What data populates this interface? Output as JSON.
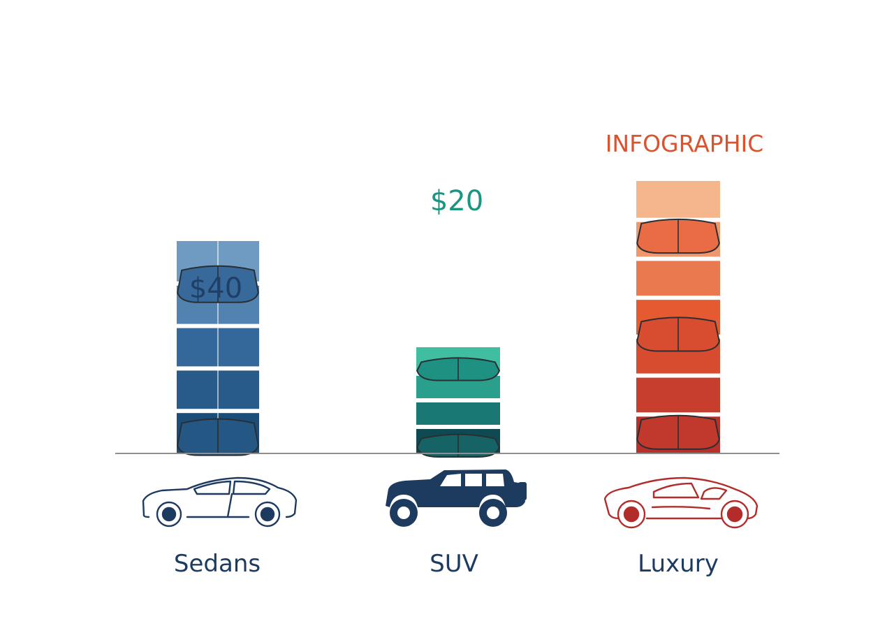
{
  "chart_data": {
    "type": "bar",
    "title": "",
    "xlabel": "",
    "ylabel": "",
    "categories": [
      "Sedans",
      "SUV",
      "Luxury"
    ],
    "series": [
      {
        "values": [
          40,
          20,
          null
        ],
        "value_labels": [
          "$40",
          "$20",
          ""
        ]
      }
    ],
    "annotations": [
      {
        "category": "Luxury",
        "text": "INFOGRAPHIC"
      }
    ],
    "grid": false,
    "legend": "none",
    "icons": [
      "sedan-car-icon",
      "suv-car-icon",
      "luxury-car-icon"
    ],
    "colors": {
      "Sedans": {
        "top": "#6f9bc3",
        "mid": "#35689a",
        "bottom": "#1b4d78",
        "label": "#1f3f66",
        "icon": "#1d3a5f"
      },
      "SUV": {
        "top": "#3fbf9f",
        "mid": "#1e8f82",
        "bottom": "#0f4a52",
        "label": "#1a9580",
        "icon": "#1d3a5f"
      },
      "Luxury": {
        "top": "#f6b68b",
        "mid": "#e65a32",
        "bottom": "#b8302a",
        "label": "#d9532e",
        "icon": "#b22d2a"
      },
      "axis": "#8f8f8f",
      "pad_outline": "#2a2f33"
    }
  }
}
